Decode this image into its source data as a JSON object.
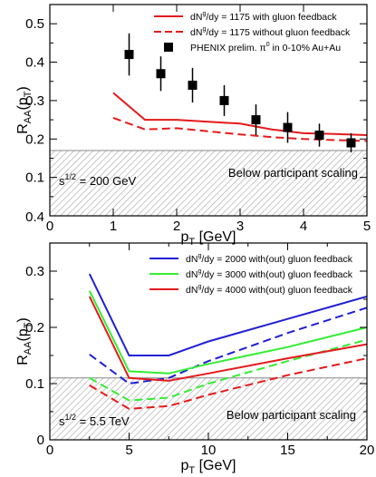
{
  "chart_data": [
    {
      "type": "line",
      "panel": "top",
      "xlabel": {
        "main": "p",
        "sub": "T",
        "unit": " [GeV]"
      },
      "ylabel": {
        "main": "R",
        "sub": "AA",
        "arg": "(p",
        "argsub": "T",
        "close": ")"
      },
      "xlim": [
        0,
        5
      ],
      "ylim": [
        0,
        0.55
      ],
      "xticks": [
        0,
        1,
        2,
        3,
        4,
        5
      ],
      "yticks": [
        0.1,
        0.2,
        0.3,
        0.4,
        0.5
      ],
      "ytick_labels": [
        "0.1",
        "0.2",
        "0.3",
        "0.4",
        "0.5"
      ],
      "lower_left_tick_label": "0.4",
      "shaded_band": {
        "ymin": 0,
        "ymax": 0.17,
        "label": "Below participant scaling"
      },
      "annotation": {
        "base": "s",
        "sup": "1/2",
        "text": " = 200 GeV"
      },
      "series": [
        {
          "name": "with gluon feedback",
          "legend_pre": "dN",
          "legend_sup": "g",
          "legend_post": "/dy = 1175 with gluon feedback",
          "color": "#e41a1c",
          "dash": "solid",
          "x": [
            1.0,
            1.5,
            2.0,
            2.5,
            3.0,
            3.5,
            4.0,
            4.5,
            5.0
          ],
          "y": [
            0.32,
            0.25,
            0.25,
            0.245,
            0.24,
            0.225,
            0.215,
            0.213,
            0.21
          ]
        },
        {
          "name": "without gluon feedback",
          "legend_pre": "dN",
          "legend_sup": "g",
          "legend_post": "/dy = 1175 without gluon feedback",
          "color": "#e41a1c",
          "dash": "dashed",
          "x": [
            1.0,
            1.5,
            2.0,
            2.5,
            3.0,
            3.5,
            4.0,
            4.5,
            5.0
          ],
          "y": [
            0.255,
            0.225,
            0.228,
            0.22,
            0.212,
            0.205,
            0.2,
            0.197,
            0.195
          ]
        },
        {
          "name": "PHENIX prelim.",
          "legend_pre": "PHENIX prelim. ",
          "legend_sup": "0",
          "legend_post": " in 0-10% Au+Au",
          "legend_symbol": "π",
          "color": "#000000",
          "marker": "square",
          "x": [
            1.25,
            1.75,
            2.25,
            2.75,
            3.25,
            3.75,
            4.25,
            4.75
          ],
          "y": [
            0.42,
            0.37,
            0.34,
            0.3,
            0.25,
            0.23,
            0.21,
            0.19
          ],
          "yerr": [
            0.055,
            0.045,
            0.045,
            0.04,
            0.04,
            0.04,
            0.03,
            0.025
          ]
        }
      ]
    },
    {
      "type": "line",
      "panel": "bottom",
      "xlabel": {
        "main": "p",
        "sub": "T",
        "unit": " [GeV]"
      },
      "ylabel": {
        "main": "R",
        "sub": "AA",
        "arg": "(p",
        "argsub": "T",
        "close": ")"
      },
      "xlim": [
        0,
        20
      ],
      "ylim": [
        0,
        0.35
      ],
      "xticks": [
        0,
        5,
        10,
        15,
        20
      ],
      "yticks": [
        0,
        0.1,
        0.2,
        0.3
      ],
      "ytick_labels": [
        "0",
        "0.1",
        "0.2",
        "0.3"
      ],
      "shaded_band": {
        "ymin": 0,
        "ymax": 0.11,
        "label": "Below participant scaling"
      },
      "annotation": {
        "base": "s",
        "sup": "1/2",
        "text": " = 5.5 TeV"
      },
      "series": [
        {
          "name": "2000 with",
          "legend_pre": "dN",
          "legend_sup": "g",
          "legend_post": "/dy = 2000 with(out) gluon feedback",
          "color": "#1f1fd6",
          "dash": "solid",
          "x": [
            2.5,
            5,
            7.5,
            10,
            15,
            20
          ],
          "y": [
            0.295,
            0.15,
            0.15,
            0.175,
            0.215,
            0.255
          ]
        },
        {
          "name": "2000 without",
          "color": "#1f1fd6",
          "dash": "dashed",
          "x": [
            2.5,
            5,
            7.5,
            10,
            15,
            20
          ],
          "y": [
            0.152,
            0.1,
            0.11,
            0.14,
            0.19,
            0.235
          ]
        },
        {
          "name": "3000 with",
          "legend_pre": "dN",
          "legend_sup": "g",
          "legend_post": "/dy = 3000 with(out) gluon feedback",
          "color": "#33ee33",
          "dash": "solid",
          "x": [
            2.5,
            5,
            7.5,
            10,
            15,
            20
          ],
          "y": [
            0.265,
            0.122,
            0.118,
            0.135,
            0.165,
            0.2
          ]
        },
        {
          "name": "3000 without",
          "color": "#33ee33",
          "dash": "dashed",
          "x": [
            2.5,
            5,
            7.5,
            10,
            15,
            20
          ],
          "y": [
            0.11,
            0.07,
            0.075,
            0.1,
            0.14,
            0.178
          ]
        },
        {
          "name": "4000 with",
          "legend_pre": "dN",
          "legend_sup": "g",
          "legend_post": "/dy = 4000 with(out) gluon feedback",
          "color": "#e41a1c",
          "dash": "solid",
          "x": [
            2.5,
            5,
            7.5,
            10,
            15,
            20
          ],
          "y": [
            0.255,
            0.11,
            0.105,
            0.118,
            0.145,
            0.17
          ]
        },
        {
          "name": "4000 without",
          "color": "#e41a1c",
          "dash": "dashed",
          "x": [
            2.5,
            5,
            7.5,
            10,
            15,
            20
          ],
          "y": [
            0.097,
            0.055,
            0.06,
            0.08,
            0.115,
            0.145
          ]
        }
      ]
    }
  ]
}
